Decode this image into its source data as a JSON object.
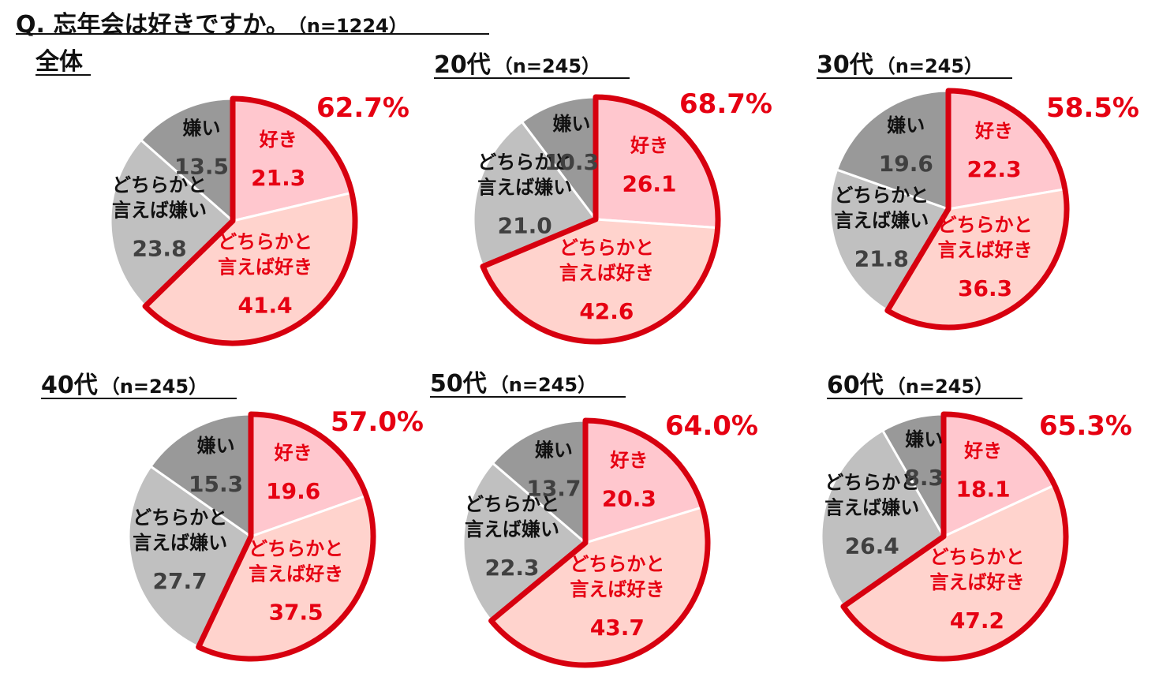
{
  "title": {
    "question": "Q. 忘年会は好きですか。",
    "n": "（n=1224）"
  },
  "colors": {
    "like": "#FFC7CE",
    "somewhat_like": "#FFD3CD",
    "somewhat_dislike": "#C0C0C0",
    "dislike": "#999999",
    "accent": "#E60012",
    "like_border": "#D7000F",
    "dark_text": "#404040"
  },
  "chart_data": [
    {
      "type": "pie",
      "title": "全体",
      "n": "",
      "highlight": "62.7%",
      "slices": [
        {
          "label": "好き",
          "value": 21.3,
          "display": "21.3"
        },
        {
          "label": "どちらかと\n言えば好き",
          "value": 41.4,
          "display": "41.4"
        },
        {
          "label": "どちらかと\n言えば嫌い",
          "value": 23.8,
          "display": "23.8"
        },
        {
          "label": "嫌い",
          "value": 13.5,
          "display": "13.5"
        }
      ]
    },
    {
      "type": "pie",
      "title": "20代",
      "n": "（n=245）",
      "highlight": "68.7%",
      "slices": [
        {
          "label": "好き",
          "value": 26.1,
          "display": "26.1"
        },
        {
          "label": "どちらかと\n言えば好き",
          "value": 42.6,
          "display": "42.6"
        },
        {
          "label": "どちらかと\n言えば嫌い",
          "value": 21.0,
          "display": "21.0"
        },
        {
          "label": "嫌い",
          "value": 10.3,
          "display": "10.3"
        }
      ]
    },
    {
      "type": "pie",
      "title": "30代",
      "n": "（n=245）",
      "highlight": "58.5%",
      "slices": [
        {
          "label": "好き",
          "value": 22.3,
          "display": "22.3"
        },
        {
          "label": "どちらかと\n言えば好き",
          "value": 36.3,
          "display": "36.3"
        },
        {
          "label": "どちらかと\n言えば嫌い",
          "value": 21.8,
          "display": "21.8"
        },
        {
          "label": "嫌い",
          "value": 19.6,
          "display": "19.6"
        }
      ]
    },
    {
      "type": "pie",
      "title": "40代",
      "n": "（n=245）",
      "highlight": "57.0%",
      "slices": [
        {
          "label": "好き",
          "value": 19.6,
          "display": "19.6"
        },
        {
          "label": "どちらかと\n言えば好き",
          "value": 37.5,
          "display": "37.5"
        },
        {
          "label": "どちらかと\n言えば嫌い",
          "value": 27.7,
          "display": "27.7"
        },
        {
          "label": "嫌い",
          "value": 15.3,
          "display": "15.3"
        }
      ]
    },
    {
      "type": "pie",
      "title": "50代",
      "n": "（n=245）",
      "highlight": "64.0%",
      "slices": [
        {
          "label": "好き",
          "value": 20.3,
          "display": "20.3"
        },
        {
          "label": "どちらかと\n言えば好き",
          "value": 43.7,
          "display": "43.7"
        },
        {
          "label": "どちらかと\n言えば嫌い",
          "value": 22.3,
          "display": "22.3"
        },
        {
          "label": "嫌い",
          "value": 13.7,
          "display": "13.7"
        }
      ]
    },
    {
      "type": "pie",
      "title": "60代",
      "n": "（n=245）",
      "highlight": "65.3%",
      "slices": [
        {
          "label": "好き",
          "value": 18.1,
          "display": "18.1"
        },
        {
          "label": "どちらかと\n言えば好き",
          "value": 47.2,
          "display": "47.2"
        },
        {
          "label": "どちらかと\n言えば嫌い",
          "value": 26.4,
          "display": "26.4"
        },
        {
          "label": "嫌い",
          "value": 8.3,
          "display": "8.3"
        }
      ]
    }
  ]
}
